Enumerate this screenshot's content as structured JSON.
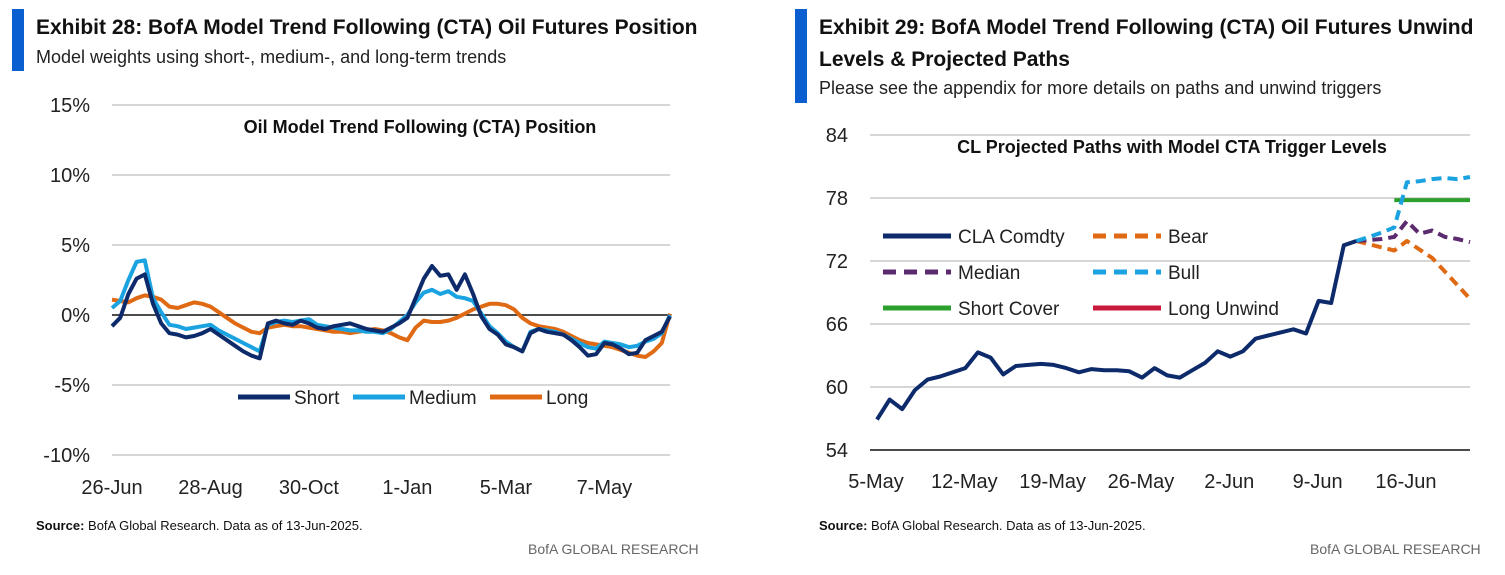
{
  "exhibit28": {
    "title": "Exhibit 28: BofA Model Trend Following (CTA) Oil Futures Position",
    "subtitle": "Model weights using short-, medium-, and long-term trends",
    "source_label": "Source:",
    "source_text": " BofA Global Research.  Data as of 13-Jun-2025.",
    "brand": "BofA GLOBAL RESEARCH"
  },
  "exhibit29": {
    "title_line1": "Exhibit 29: BofA Model Trend Following (CTA) Oil Futures Unwind",
    "title_line2": "Levels & Projected Paths",
    "subtitle": "Please see the appendix for more details on paths and unwind triggers",
    "source_label": "Source:",
    "source_text": " BofA Global Research.  Data as of 13-Jun-2025.",
    "brand": "BofA GLOBAL RESEARCH"
  },
  "colors": {
    "navy": "#0d2a6b",
    "light_blue": "#1aa3e0",
    "orange": "#e06a14",
    "purple": "#5c2a6e",
    "green": "#2ca02c",
    "crimson": "#c8193c",
    "accent_bar": "#0a5ecf"
  },
  "chart_data": [
    {
      "type": "line",
      "title": "Oil Model Trend Following (CTA) Position",
      "xlabel": "",
      "ylabel": "",
      "ylim": [
        -10,
        15
      ],
      "yticks": [
        "15%",
        "10%",
        "5%",
        "0%",
        "-5%",
        "-10%"
      ],
      "ytick_values": [
        15,
        10,
        5,
        0,
        -5,
        -10
      ],
      "xticks": [
        "26-Jun",
        "28-Aug",
        "30-Oct",
        "1-Jan",
        "5-Mar",
        "7-May"
      ],
      "xtick_index": [
        0,
        12,
        24,
        36,
        48,
        60
      ],
      "n_points": 69,
      "grid": true,
      "legend_position": "bottom-center",
      "series": [
        {
          "name": "Short",
          "color": "#0d2a6b",
          "values": [
            -0.8,
            -0.2,
            1.5,
            2.6,
            2.9,
            0.8,
            -0.6,
            -1.3,
            -1.4,
            -1.6,
            -1.5,
            -1.3,
            -1.0,
            -1.4,
            -1.8,
            -2.2,
            -2.6,
            -2.9,
            -3.1,
            -0.6,
            -0.4,
            -0.6,
            -0.7,
            -0.4,
            -0.6,
            -0.9,
            -1.0,
            -0.8,
            -0.7,
            -0.6,
            -0.8,
            -1.0,
            -1.1,
            -1.2,
            -0.9,
            -0.6,
            -0.2,
            1.2,
            2.6,
            3.5,
            2.8,
            2.9,
            1.8,
            2.9,
            1.5,
            -0.1,
            -1.0,
            -1.4,
            -2.1,
            -2.3,
            -2.6,
            -1.3,
            -1.0,
            -1.2,
            -1.3,
            -1.4,
            -1.8,
            -2.3,
            -2.9,
            -2.8,
            -2.0,
            -2.1,
            -2.4,
            -2.8,
            -2.7,
            -1.8,
            -1.5,
            -1.2,
            -0.1
          ]
        },
        {
          "name": "Medium",
          "color": "#1aa3e0",
          "values": [
            0.5,
            1.0,
            2.5,
            3.8,
            3.9,
            1.2,
            0.2,
            -0.7,
            -0.8,
            -1.0,
            -0.9,
            -0.8,
            -0.7,
            -1.1,
            -1.4,
            -1.7,
            -2.0,
            -2.3,
            -2.6,
            -0.7,
            -0.5,
            -0.4,
            -0.5,
            -0.4,
            -0.3,
            -0.7,
            -0.8,
            -0.9,
            -1.0,
            -1.1,
            -1.1,
            -1.2,
            -1.2,
            -1.3,
            -1.0,
            -0.5,
            0.0,
            0.9,
            1.6,
            1.8,
            1.5,
            1.7,
            1.3,
            1.2,
            1.0,
            0.1,
            -0.8,
            -1.3,
            -1.9,
            -2.3,
            -2.6,
            -1.2,
            -1.0,
            -1.1,
            -1.2,
            -1.4,
            -1.7,
            -2.0,
            -2.3,
            -2.4,
            -1.9,
            -2.0,
            -2.1,
            -2.3,
            -2.2,
            -1.9,
            -1.7,
            -1.3,
            0.0
          ]
        },
        {
          "name": "Long",
          "color": "#e06a14",
          "values": [
            1.1,
            1.0,
            0.9,
            1.2,
            1.4,
            1.3,
            1.1,
            0.6,
            0.5,
            0.7,
            0.9,
            0.8,
            0.6,
            0.2,
            -0.2,
            -0.6,
            -0.9,
            -1.2,
            -1.3,
            -0.9,
            -0.8,
            -0.7,
            -0.8,
            -0.8,
            -0.9,
            -1.0,
            -1.1,
            -1.2,
            -1.2,
            -1.3,
            -1.2,
            -1.1,
            -1.0,
            -1.1,
            -1.3,
            -1.6,
            -1.8,
            -0.9,
            -0.4,
            -0.5,
            -0.5,
            -0.4,
            -0.2,
            0.1,
            0.4,
            0.6,
            0.8,
            0.8,
            0.7,
            0.4,
            -0.2,
            -0.6,
            -0.8,
            -0.9,
            -1.0,
            -1.2,
            -1.5,
            -1.8,
            -2.0,
            -2.1,
            -2.2,
            -2.3,
            -2.5,
            -2.7,
            -2.9,
            -3.0,
            -2.6,
            -2.0,
            0.1
          ]
        }
      ]
    },
    {
      "type": "line",
      "title": "CL Projected Paths with Model CTA Trigger Levels",
      "xlabel": "",
      "ylabel": "",
      "ylim": [
        54,
        84
      ],
      "yticks": [
        "84",
        "78",
        "72",
        "66",
        "60",
        "54"
      ],
      "ytick_values": [
        84,
        78,
        72,
        66,
        60,
        54
      ],
      "xticks": [
        "5-May",
        "12-May",
        "19-May",
        "26-May",
        "2-Jun",
        "9-Jun",
        "16-Jun"
      ],
      "xtick_index": [
        0,
        7,
        14,
        21,
        28,
        35,
        42
      ],
      "x_max_index": 47,
      "grid": true,
      "legend_position": "top-left",
      "legend_order": [
        "CLA Comdty",
        "Bear",
        "Median",
        "Bull",
        "Short Cover",
        "Long Unwind"
      ],
      "series": [
        {
          "name": "CLA Comdty",
          "color": "#0d2a6b",
          "style": "solid",
          "x": [
            0,
            1,
            2,
            3,
            4,
            5,
            6,
            7,
            8,
            9,
            10,
            11,
            12,
            13,
            14,
            15,
            16,
            17,
            18,
            19,
            20,
            21,
            22,
            23,
            24,
            25,
            26,
            27,
            28,
            29,
            30,
            31,
            32,
            33,
            34,
            35,
            36,
            37,
            38
          ],
          "values": [
            56.9,
            58.8,
            57.9,
            59.7,
            60.7,
            61.0,
            61.4,
            61.8,
            63.3,
            62.8,
            61.2,
            62.0,
            62.1,
            62.2,
            62.1,
            61.8,
            61.4,
            61.7,
            61.6,
            61.6,
            61.5,
            60.9,
            61.8,
            61.1,
            60.9,
            61.6,
            62.3,
            63.4,
            62.9,
            63.4,
            64.6,
            64.9,
            65.2,
            65.5,
            65.1,
            68.2,
            68.0,
            73.5,
            73.9
          ]
        },
        {
          "name": "Bear",
          "color": "#e06a14",
          "style": "dashed",
          "x": [
            38,
            39,
            40,
            41,
            42,
            43,
            44,
            45,
            46,
            47
          ],
          "values": [
            73.9,
            73.6,
            73.3,
            73.0,
            73.9,
            73.1,
            72.3,
            71.0,
            69.7,
            68.4
          ]
        },
        {
          "name": "Median",
          "color": "#5c2a6e",
          "style": "dashed",
          "x": [
            38,
            39,
            40,
            41,
            42,
            43,
            44,
            45,
            46,
            47
          ],
          "values": [
            73.9,
            74.0,
            74.1,
            74.3,
            75.8,
            74.6,
            74.9,
            74.3,
            74.1,
            73.8
          ]
        },
        {
          "name": "Bull",
          "color": "#1aa3e0",
          "style": "dashed",
          "x": [
            38,
            39,
            40,
            41,
            42,
            43,
            44,
            45,
            46,
            47
          ],
          "values": [
            73.9,
            74.3,
            74.7,
            75.2,
            79.5,
            79.6,
            79.8,
            79.9,
            79.8,
            80.0
          ]
        },
        {
          "name": "Short Cover",
          "color": "#2ca02c",
          "style": "solid",
          "x": [
            41,
            47
          ],
          "values": [
            77.8,
            77.8
          ]
        },
        {
          "name": "Long Unwind",
          "color": "#c8193c",
          "style": "solid",
          "x": [],
          "values": []
        }
      ]
    }
  ]
}
